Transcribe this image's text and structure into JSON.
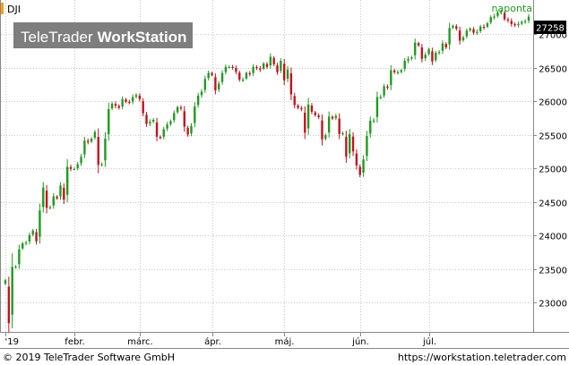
{
  "header": {
    "symbol": "DJI",
    "period": "naponta",
    "last_value": "27258"
  },
  "watermark": {
    "brand": "TeleTrader",
    "product": "WorkStation"
  },
  "footer": {
    "copyright": "© 2019 TeleTrader Software GmbH",
    "url": "https://workstation.teletrader.com"
  },
  "colors": {
    "up": "#1e9a1e",
    "down": "#c1121c",
    "grid": "#c8c8c8",
    "frame": "#888888",
    "label_bg": "#000000",
    "accent": "#f0a020"
  },
  "chart_data": {
    "type": "candlestick",
    "title": "DJI",
    "frequency": "naponta",
    "y_ticks": [
      23000,
      23500,
      24000,
      24500,
      25000,
      25500,
      26000,
      26500,
      27000
    ],
    "y_tick_labels": [
      "23000",
      "23500",
      "24000",
      "24500",
      "25000",
      "25500",
      "26000",
      "26500",
      "27000"
    ],
    "ylim": [
      22600,
      27400
    ],
    "x_tick_labels": [
      "'19",
      "febr.",
      "márc.",
      "ápr.",
      "máj.",
      "jún.",
      "júl."
    ],
    "x_tick_index": [
      0,
      20,
      39,
      60,
      81,
      103,
      123
    ],
    "last_value": 27258,
    "closes": [
      23330,
      22690,
      23530,
      23530,
      23790,
      23880,
      23890,
      24000,
      24070,
      23910,
      24370,
      24710,
      24410,
      24420,
      24580,
      24550,
      24740,
      24530,
      25020,
      24990,
      24990,
      25060,
      25170,
      25410,
      25390,
      25440,
      25540,
      25050,
      25060,
      25440,
      25880,
      25960,
      25930,
      25900,
      26030,
      25990,
      25980,
      26060,
      26090,
      26030,
      25820,
      25660,
      25690,
      25720,
      25470,
      25450,
      25580,
      25650,
      25700,
      25820,
      25910,
      25890,
      25620,
      25500,
      25630,
      25920,
      26080,
      26140,
      26330,
      26420,
      26390,
      26160,
      26260,
      26420,
      26510,
      26510,
      26500,
      26440,
      26320,
      26320,
      26420,
      26400,
      26510,
      26490,
      26470,
      26560,
      26510,
      26660,
      26550,
      26430,
      26600,
      26310,
      26470,
      26100,
      25940,
      25900,
      25880,
      25530,
      25950,
      25840,
      25790,
      25760,
      25430,
      25490,
      25770,
      25740,
      25780,
      25510,
      25520,
      25170,
      25510,
      25250,
      25040,
      24900,
      25130,
      25480,
      25710,
      25710,
      26060,
      26060,
      26220,
      26200,
      26460,
      26430,
      26430,
      26460,
      26600,
      26630,
      26650,
      26870,
      26830,
      26630,
      26690,
      26770,
      26590,
      26720,
      26730,
      26860,
      26800,
      27090,
      27120,
      27080,
      26900,
      26950,
      27050,
      27080,
      27020,
      27030,
      27110,
      27100,
      27160,
      27250,
      27260,
      27320,
      27330,
      27220,
      27200,
      27150,
      27130,
      27150,
      27180,
      27190,
      27258
    ]
  }
}
